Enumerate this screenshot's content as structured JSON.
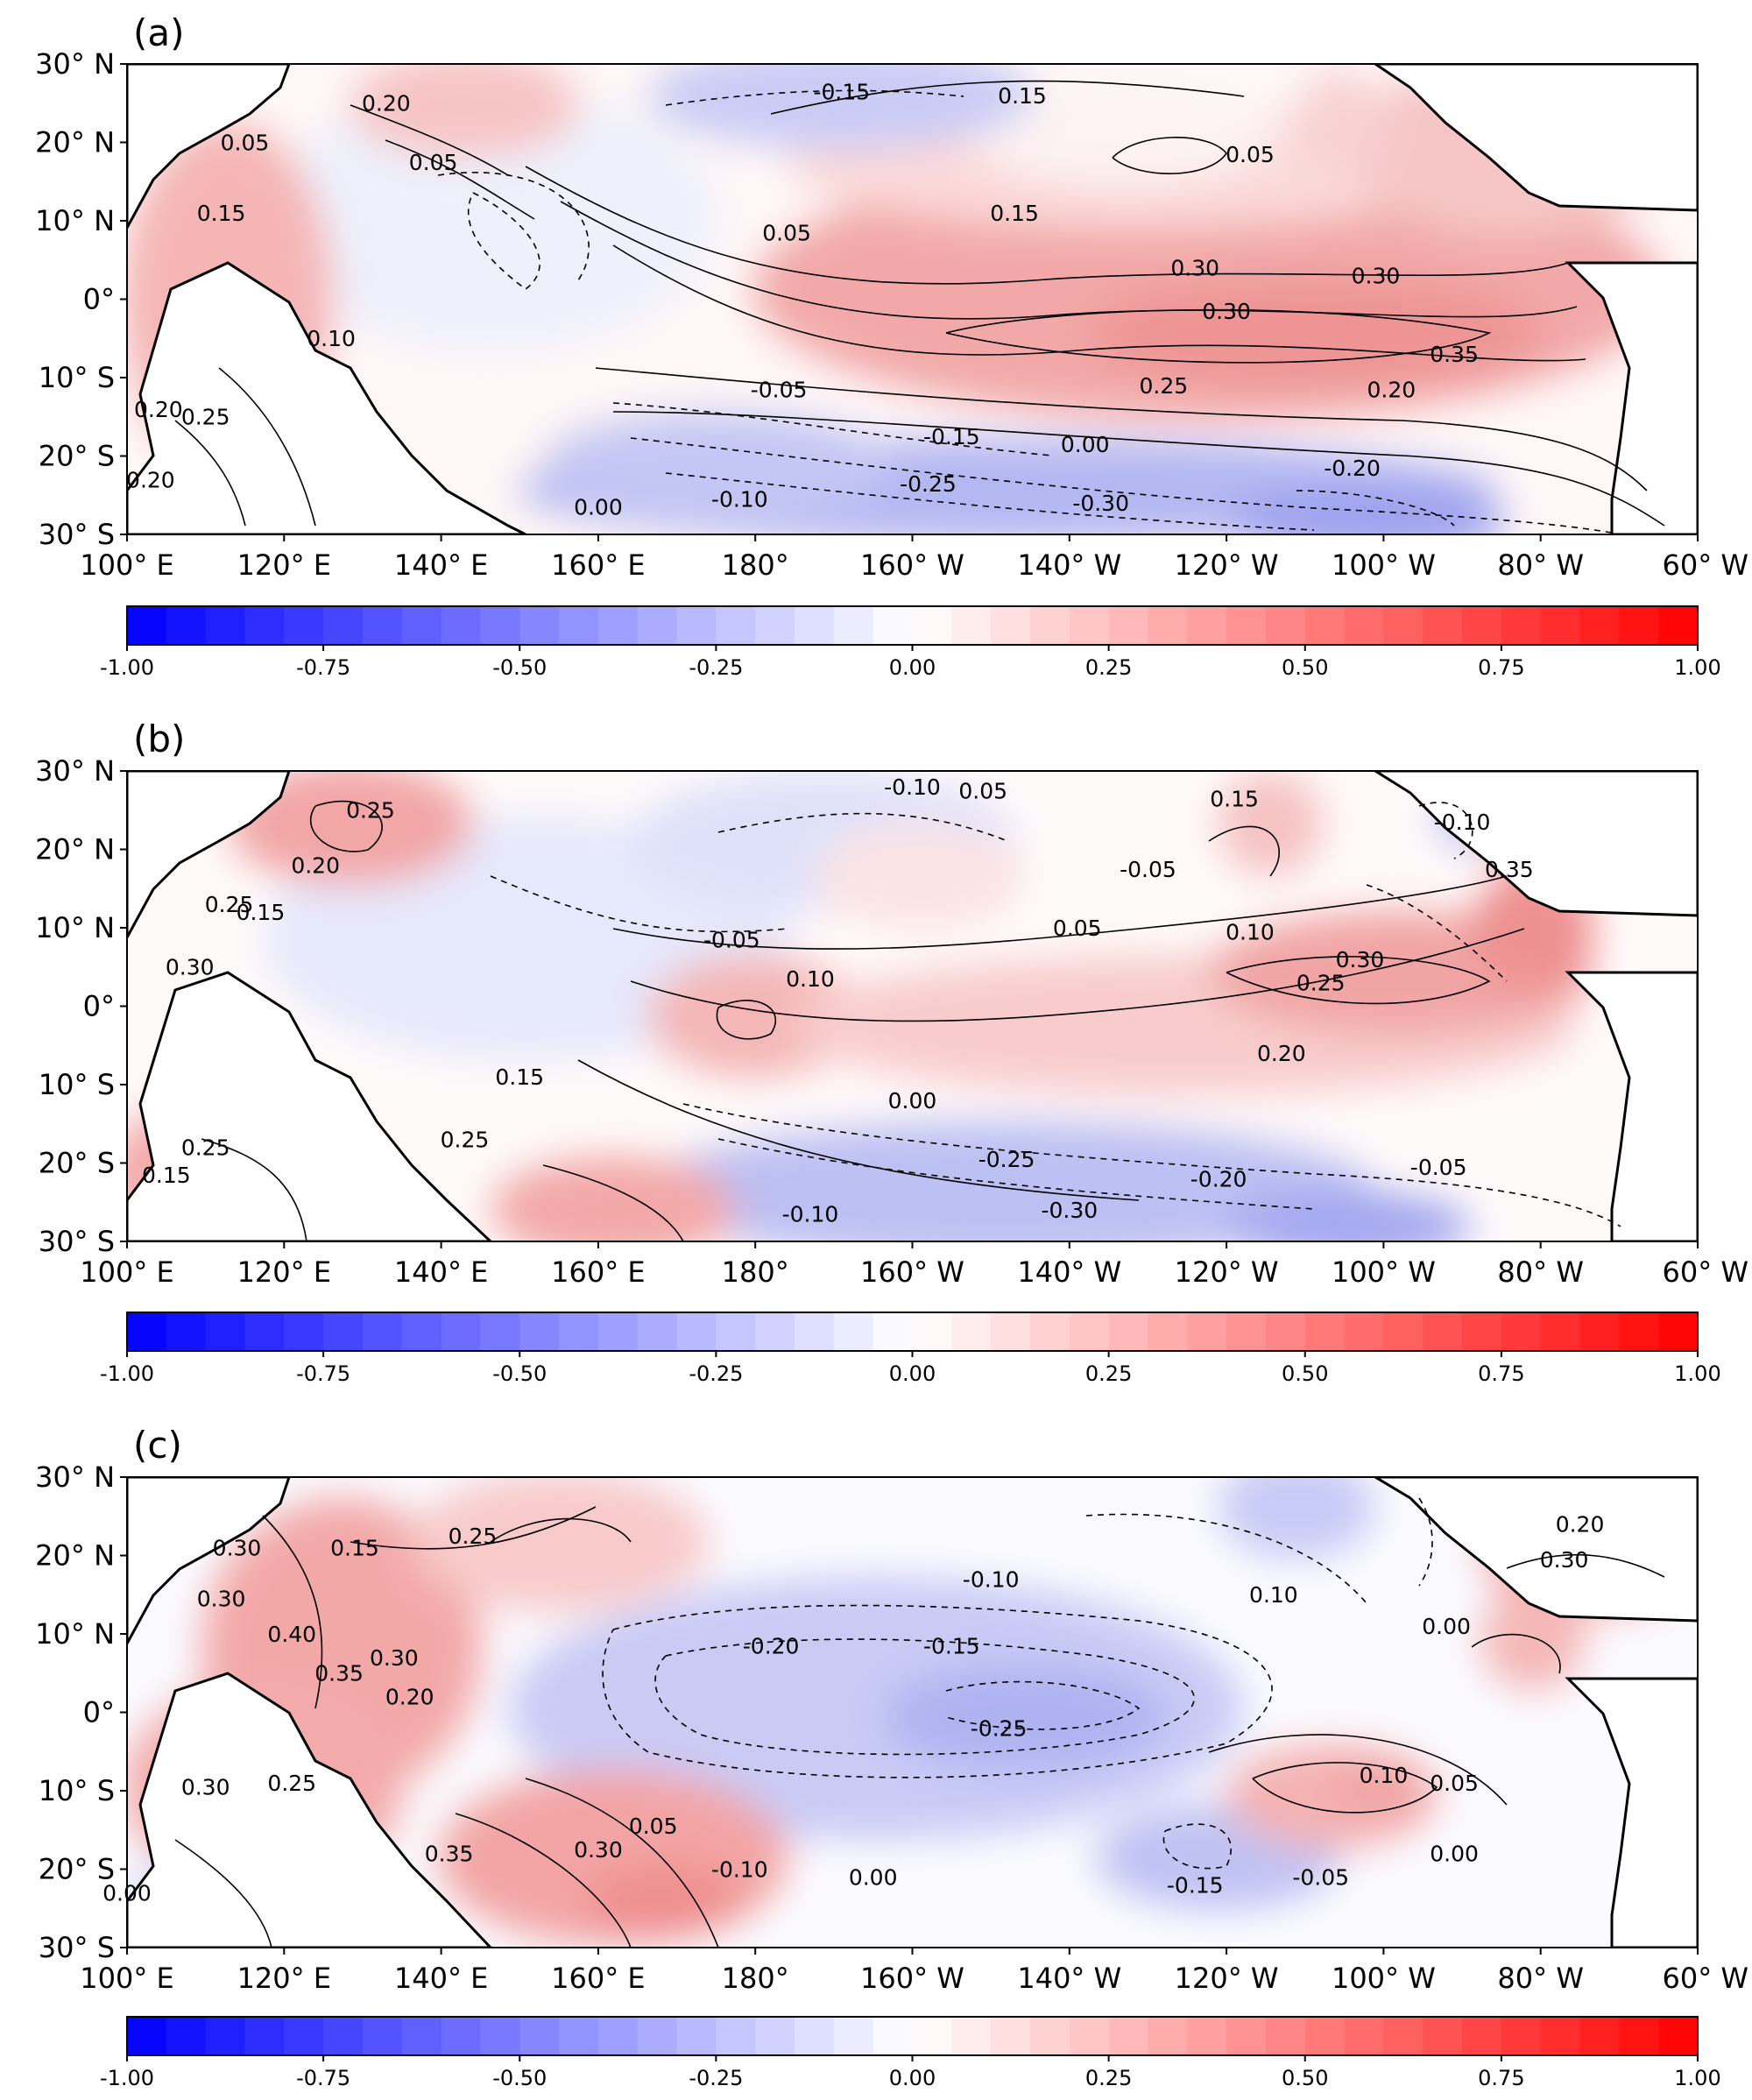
{
  "colors": {
    "negative": "#0000ff",
    "zero": "#ffffff",
    "positive": "#ff0000",
    "land": "#ffffff",
    "coast": "#000000"
  },
  "yticks": [
    "30° N",
    "20° N",
    "10° N",
    "0°",
    "10° S",
    "20° S",
    "30° S"
  ],
  "xticks": [
    "100° E",
    "120° E",
    "140° E",
    "160° E",
    "180°",
    "160° W",
    "140° W",
    "120° W",
    "100° W",
    "80° W",
    "60° W"
  ],
  "colorbar": {
    "range": [
      -1.0,
      1.0
    ],
    "levels": 40,
    "ticks": [
      "-1.00",
      "-0.75",
      "-0.50",
      "-0.25",
      "0.00",
      "0.25",
      "0.50",
      "0.75",
      "1.00"
    ]
  },
  "chart_data": [
    {
      "type": "heatmap",
      "panel": "(a)",
      "x_range": [
        "100° E",
        "60° W"
      ],
      "y_range": [
        "30° S",
        "30° N"
      ],
      "vmin": -1.0,
      "vmax": 1.0,
      "contour_labels": [
        {
          "text": "0.20",
          "lon": 133,
          "lat": 24
        },
        {
          "text": "0.05",
          "lon": 115,
          "lat": 19
        },
        {
          "text": "0.05",
          "lon": 139,
          "lat": 16.5
        },
        {
          "text": "0.15",
          "lon": 112,
          "lat": 10
        },
        {
          "text": "-0.15",
          "lon": 191,
          "lat": 25.5
        },
        {
          "text": "0.15",
          "lon": 214,
          "lat": 25
        },
        {
          "text": "0.05",
          "lon": 243,
          "lat": 17.5
        },
        {
          "text": "0.05",
          "lon": 184,
          "lat": 7.5
        },
        {
          "text": "0.15",
          "lon": 213,
          "lat": 10
        },
        {
          "text": "0.30",
          "lon": 236,
          "lat": 3
        },
        {
          "text": "0.30",
          "lon": 259,
          "lat": 2
        },
        {
          "text": "0.30",
          "lon": 240,
          "lat": -2.5
        },
        {
          "text": "0.35",
          "lon": 269,
          "lat": -8
        },
        {
          "text": "0.25",
          "lon": 232,
          "lat": -12
        },
        {
          "text": "0.20",
          "lon": 261,
          "lat": -12.5
        },
        {
          "text": "-0.05",
          "lon": 183,
          "lat": -12.5
        },
        {
          "text": "-0.15",
          "lon": 205,
          "lat": -18.5
        },
        {
          "text": "0.00",
          "lon": 222,
          "lat": -19.5
        },
        {
          "text": "-0.20",
          "lon": 256,
          "lat": -22.5
        },
        {
          "text": "-0.25",
          "lon": 202,
          "lat": -24.5
        },
        {
          "text": "-0.30",
          "lon": 224,
          "lat": -27
        },
        {
          "text": "-0.10",
          "lon": 178,
          "lat": -26.5
        },
        {
          "text": "0.00",
          "lon": 160,
          "lat": -27.5
        },
        {
          "text": "0.25",
          "lon": 110,
          "lat": -16
        },
        {
          "text": "0.20",
          "lon": 104,
          "lat": -15
        },
        {
          "text": "0.20",
          "lon": 103,
          "lat": -24
        },
        {
          "text": "0.10",
          "lon": 126,
          "lat": -6
        }
      ]
    },
    {
      "type": "heatmap",
      "panel": "(b)",
      "x_range": [
        "100° E",
        "60° W"
      ],
      "y_range": [
        "30° S",
        "30° N"
      ],
      "vmin": -1.0,
      "vmax": 1.0,
      "contour_labels": [
        {
          "text": "0.25",
          "lon": 131,
          "lat": 24
        },
        {
          "text": "0.20",
          "lon": 124,
          "lat": 17
        },
        {
          "text": "0.25",
          "lon": 113,
          "lat": 12
        },
        {
          "text": "0.15",
          "lon": 117,
          "lat": 11
        },
        {
          "text": "0.30",
          "lon": 108,
          "lat": 4
        },
        {
          "text": "-0.10",
          "lon": 200,
          "lat": 27
        },
        {
          "text": "0.05",
          "lon": 209,
          "lat": 26.5
        },
        {
          "text": "-0.05",
          "lon": 230,
          "lat": 16.5
        },
        {
          "text": "0.15",
          "lon": 241,
          "lat": 25.5
        },
        {
          "text": "-0.10",
          "lon": 270,
          "lat": 22.5
        },
        {
          "text": "0.35",
          "lon": 276,
          "lat": 16.5
        },
        {
          "text": "-0.05",
          "lon": 177,
          "lat": 7.5
        },
        {
          "text": "0.05",
          "lon": 221,
          "lat": 9
        },
        {
          "text": "0.10",
          "lon": 243,
          "lat": 8.5
        },
        {
          "text": "0.10",
          "lon": 187,
          "lat": 2.5
        },
        {
          "text": "0.30",
          "lon": 257,
          "lat": 5
        },
        {
          "text": "0.25",
          "lon": 252,
          "lat": 2
        },
        {
          "text": "0.20",
          "lon": 247,
          "lat": -7
        },
        {
          "text": "0.00",
          "lon": 200,
          "lat": -13
        },
        {
          "text": "-0.25",
          "lon": 212,
          "lat": -20.5
        },
        {
          "text": "-0.20",
          "lon": 239,
          "lat": -23
        },
        {
          "text": "-0.30",
          "lon": 220,
          "lat": -27
        },
        {
          "text": "-0.10",
          "lon": 187,
          "lat": -27.5
        },
        {
          "text": "-0.05",
          "lon": 267,
          "lat": -21.5
        },
        {
          "text": "0.25",
          "lon": 110,
          "lat": -19
        },
        {
          "text": "0.15",
          "lon": 105,
          "lat": -22.5
        },
        {
          "text": "0.25",
          "lon": 143,
          "lat": -18
        },
        {
          "text": "0.15",
          "lon": 150,
          "lat": -10
        }
      ]
    },
    {
      "type": "heatmap",
      "panel": "(c)",
      "x_range": [
        "100° E",
        "60° W"
      ],
      "y_range": [
        "30° S",
        "30° N"
      ],
      "vmin": -1.0,
      "vmax": 1.0,
      "contour_labels": [
        {
          "text": "0.15",
          "lon": 129,
          "lat": 20
        },
        {
          "text": "0.25",
          "lon": 144,
          "lat": 21.5
        },
        {
          "text": "0.30",
          "lon": 114,
          "lat": 20
        },
        {
          "text": "0.30",
          "lon": 112,
          "lat": 13.5
        },
        {
          "text": "0.40",
          "lon": 121,
          "lat": 9
        },
        {
          "text": "0.35",
          "lon": 127,
          "lat": 4
        },
        {
          "text": "0.30",
          "lon": 134,
          "lat": 6
        },
        {
          "text": "0.20",
          "lon": 136,
          "lat": 1
        },
        {
          "text": "-0.10",
          "lon": 210,
          "lat": 16
        },
        {
          "text": "0.10",
          "lon": 246,
          "lat": 14
        },
        {
          "text": "-0.20",
          "lon": 182,
          "lat": 7.5
        },
        {
          "text": "-0.15",
          "lon": 205,
          "lat": 7.5
        },
        {
          "text": "-0.25",
          "lon": 211,
          "lat": -3
        },
        {
          "text": "0.10",
          "lon": 260,
          "lat": -9
        },
        {
          "text": "0.05",
          "lon": 269,
          "lat": -10
        },
        {
          "text": "0.00",
          "lon": 268,
          "lat": 10
        },
        {
          "text": "0.20",
          "lon": 285,
          "lat": 23
        },
        {
          "text": "0.30",
          "lon": 283,
          "lat": 18.5
        },
        {
          "text": "0.30",
          "lon": 110,
          "lat": -10.5
        },
        {
          "text": "0.25",
          "lon": 121,
          "lat": -10
        },
        {
          "text": "0.35",
          "lon": 141,
          "lat": -19
        },
        {
          "text": "0.30",
          "lon": 160,
          "lat": -18.5
        },
        {
          "text": "0.05",
          "lon": 167,
          "lat": -15.5
        },
        {
          "text": "-0.10",
          "lon": 178,
          "lat": -21
        },
        {
          "text": "0.00",
          "lon": 195,
          "lat": -22
        },
        {
          "text": "-0.15",
          "lon": 236,
          "lat": -23
        },
        {
          "text": "-0.05",
          "lon": 252,
          "lat": -22
        },
        {
          "text": "0.00",
          "lon": 269,
          "lat": -19
        },
        {
          "text": "0.00",
          "lon": 100,
          "lat": -24
        }
      ]
    }
  ]
}
